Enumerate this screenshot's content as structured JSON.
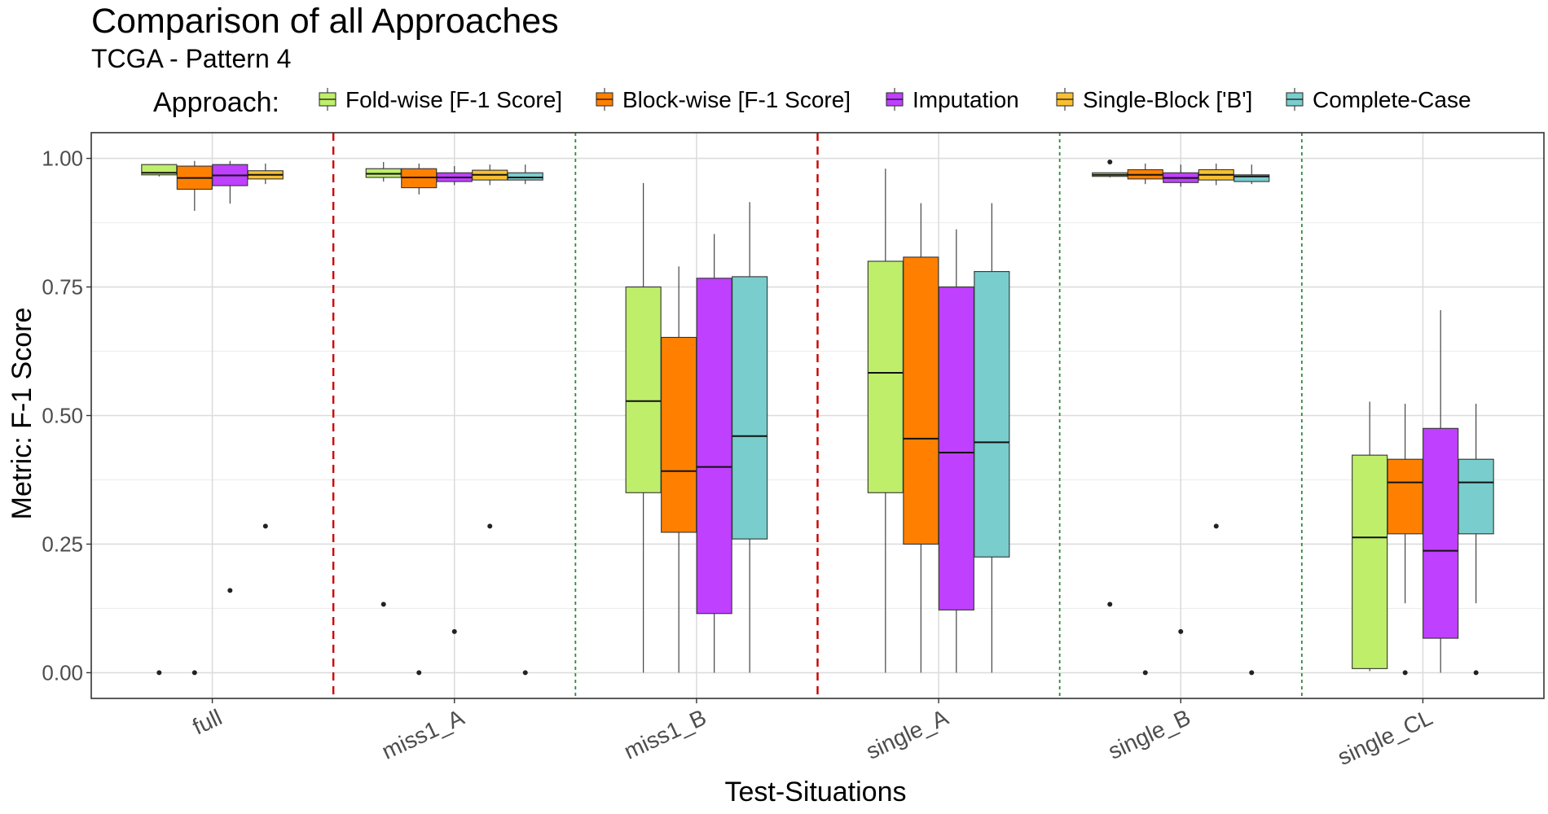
{
  "chart_data": {
    "type": "boxplot",
    "title": "Comparison of all Approaches",
    "subtitle": "TCGA - Pattern 4",
    "legend_title": "Approach:",
    "legend_position": "top",
    "xlabel": "Test-Situations",
    "ylabel": "Metric: F-1 Score",
    "ylim": [
      -0.05,
      1.05
    ],
    "yticks": [
      0.0,
      0.25,
      0.5,
      0.75,
      1.0
    ],
    "ytick_labels": [
      "0.00",
      "0.25",
      "0.50",
      "0.75",
      "1.00"
    ],
    "grid": true,
    "categories": [
      "full",
      "miss1_A",
      "miss1_B",
      "single_A",
      "single_B",
      "single_CL"
    ],
    "approaches": [
      {
        "name": "Fold-wise [F-1 Score]",
        "color": "#bfee6b"
      },
      {
        "name": "Block-wise [F-1 Score]",
        "color": "#ff8000"
      },
      {
        "name": "Imputation",
        "color": "#bf40ff"
      },
      {
        "name": "Single-Block ['B']",
        "color": "#f8bf32"
      },
      {
        "name": "Complete-Case",
        "color": "#79cdcd"
      }
    ],
    "dividers": [
      {
        "after_category": "full",
        "style": "red-dashed"
      },
      {
        "after_category": "miss1_A",
        "style": "green-dotted"
      },
      {
        "after_category": "miss1_B",
        "style": "red-dashed"
      },
      {
        "after_category": "single_A",
        "style": "green-dotted"
      },
      {
        "after_category": "single_B",
        "style": "green-dotted"
      }
    ],
    "divider_colors": {
      "red-dashed": "#cc0000",
      "green-dotted": "#2e8b3a"
    },
    "groups": [
      {
        "category": "full",
        "boxes": [
          {
            "approach": "Fold-wise [F-1 Score]",
            "slot": 0,
            "min": 0.965,
            "q1": 0.968,
            "median": 0.972,
            "q3": 0.988,
            "max": 0.988,
            "outliers": [
              0.0
            ]
          },
          {
            "approach": "Block-wise [F-1 Score]",
            "slot": 1,
            "min": 0.898,
            "q1": 0.94,
            "median": 0.962,
            "q3": 0.985,
            "max": 0.995,
            "outliers": [
              0.0
            ]
          },
          {
            "approach": "Imputation",
            "slot": 2,
            "min": 0.912,
            "q1": 0.947,
            "median": 0.967,
            "q3": 0.988,
            "max": 0.995,
            "outliers": [
              0.16
            ]
          },
          {
            "approach": "Single-Block ['B']",
            "slot": 3,
            "min": 0.95,
            "q1": 0.96,
            "median": 0.968,
            "q3": 0.976,
            "max": 0.99,
            "outliers": [
              0.285
            ]
          }
        ]
      },
      {
        "category": "miss1_A",
        "boxes": [
          {
            "approach": "Fold-wise [F-1 Score]",
            "slot": 0,
            "min": 0.955,
            "q1": 0.963,
            "median": 0.97,
            "q3": 0.98,
            "max": 0.993,
            "outliers": [
              0.133
            ]
          },
          {
            "approach": "Block-wise [F-1 Score]",
            "slot": 1,
            "min": 0.93,
            "q1": 0.943,
            "median": 0.963,
            "q3": 0.98,
            "max": 0.99,
            "outliers": [
              0.0
            ]
          },
          {
            "approach": "Imputation",
            "slot": 2,
            "min": 0.948,
            "q1": 0.955,
            "median": 0.963,
            "q3": 0.972,
            "max": 0.985,
            "outliers": [
              0.08
            ]
          },
          {
            "approach": "Single-Block ['B']",
            "slot": 3,
            "min": 0.948,
            "q1": 0.958,
            "median": 0.968,
            "q3": 0.977,
            "max": 0.988,
            "outliers": [
              0.285
            ]
          },
          {
            "approach": "Complete-Case",
            "slot": 4,
            "min": 0.95,
            "q1": 0.958,
            "median": 0.963,
            "q3": 0.972,
            "max": 0.988,
            "outliers": [
              0.0
            ]
          }
        ]
      },
      {
        "category": "miss1_B",
        "boxes": [
          {
            "approach": "Fold-wise [F-1 Score]",
            "slot": 0,
            "min": 0.0,
            "q1": 0.35,
            "median": 0.528,
            "q3": 0.75,
            "max": 0.952,
            "outliers": []
          },
          {
            "approach": "Block-wise [F-1 Score]",
            "slot": 1,
            "min": 0.0,
            "q1": 0.273,
            "median": 0.392,
            "q3": 0.652,
            "max": 0.79,
            "outliers": []
          },
          {
            "approach": "Imputation",
            "slot": 2,
            "min": 0.0,
            "q1": 0.115,
            "median": 0.4,
            "q3": 0.767,
            "max": 0.853,
            "outliers": []
          },
          {
            "approach": "Complete-Case",
            "slot": 3,
            "min": 0.0,
            "q1": 0.26,
            "median": 0.46,
            "q3": 0.77,
            "max": 0.915,
            "outliers": []
          }
        ]
      },
      {
        "category": "single_A",
        "boxes": [
          {
            "approach": "Fold-wise [F-1 Score]",
            "slot": 0,
            "min": 0.0,
            "q1": 0.35,
            "median": 0.583,
            "q3": 0.8,
            "max": 0.98,
            "outliers": []
          },
          {
            "approach": "Block-wise [F-1 Score]",
            "slot": 1,
            "min": 0.0,
            "q1": 0.25,
            "median": 0.455,
            "q3": 0.808,
            "max": 0.913,
            "outliers": []
          },
          {
            "approach": "Imputation",
            "slot": 2,
            "min": 0.0,
            "q1": 0.122,
            "median": 0.428,
            "q3": 0.75,
            "max": 0.862,
            "outliers": []
          },
          {
            "approach": "Complete-Case",
            "slot": 3,
            "min": 0.0,
            "q1": 0.225,
            "median": 0.448,
            "q3": 0.78,
            "max": 0.913,
            "outliers": []
          }
        ]
      },
      {
        "category": "single_B",
        "boxes": [
          {
            "approach": "Fold-wise [F-1 Score]",
            "slot": 0,
            "min": 0.963,
            "q1": 0.965,
            "median": 0.968,
            "q3": 0.972,
            "max": 0.972,
            "outliers": [
              0.993,
              0.133
            ]
          },
          {
            "approach": "Block-wise [F-1 Score]",
            "slot": 1,
            "min": 0.95,
            "q1": 0.96,
            "median": 0.968,
            "q3": 0.978,
            "max": 0.99,
            "outliers": [
              0.0
            ]
          },
          {
            "approach": "Imputation",
            "slot": 2,
            "min": 0.945,
            "q1": 0.953,
            "median": 0.962,
            "q3": 0.972,
            "max": 0.988,
            "outliers": [
              0.08
            ]
          },
          {
            "approach": "Single-Block ['B']",
            "slot": 3,
            "min": 0.948,
            "q1": 0.958,
            "median": 0.968,
            "q3": 0.978,
            "max": 0.99,
            "outliers": [
              0.285
            ]
          },
          {
            "approach": "Complete-Case",
            "slot": 4,
            "min": 0.95,
            "q1": 0.955,
            "median": 0.965,
            "q3": 0.968,
            "max": 0.988,
            "outliers": [
              0.0
            ]
          }
        ]
      },
      {
        "category": "single_CL",
        "boxes": [
          {
            "approach": "Fold-wise [F-1 Score]",
            "slot": 0,
            "min": 0.003,
            "q1": 0.008,
            "median": 0.263,
            "q3": 0.423,
            "max": 0.527,
            "outliers": []
          },
          {
            "approach": "Block-wise [F-1 Score]",
            "slot": 1,
            "min": 0.135,
            "q1": 0.27,
            "median": 0.37,
            "q3": 0.415,
            "max": 0.523,
            "outliers": [
              0.0
            ]
          },
          {
            "approach": "Imputation",
            "slot": 2,
            "min": 0.0,
            "q1": 0.067,
            "median": 0.237,
            "q3": 0.475,
            "max": 0.705,
            "outliers": []
          },
          {
            "approach": "Complete-Case",
            "slot": 3,
            "min": 0.135,
            "q1": 0.27,
            "median": 0.37,
            "q3": 0.415,
            "max": 0.523,
            "outliers": [
              0.0
            ]
          }
        ]
      }
    ]
  }
}
